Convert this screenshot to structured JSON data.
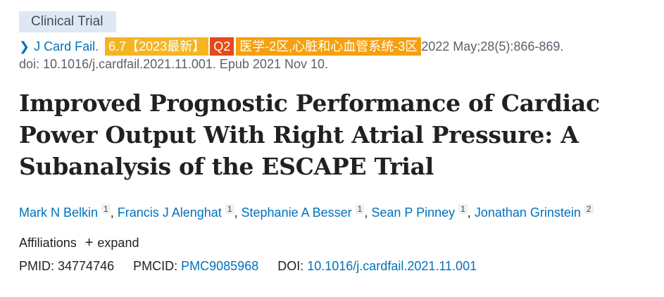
{
  "pub_type": "Clinical Trial",
  "citation": {
    "journal": "J Card Fail.",
    "impact_badge": "6.7【2023最新】",
    "quartile_badge": "Q2",
    "cas_badge": "医学-2区,心脏和心血管系统-3区",
    "date_volume": "2022 May;28(5):866-869.",
    "doi_epub": "doi: 10.1016/j.cardfail.2021.11.001. Epub 2021 Nov 10."
  },
  "title": "Improved Prognostic Performance of Cardiac Power Output With Right Atrial Pressure: A Subanalysis of the ESCAPE Trial",
  "authors": [
    {
      "name": "Mark N Belkin",
      "aff": "1"
    },
    {
      "name": "Francis J Alenghat",
      "aff": "1"
    },
    {
      "name": "Stephanie A Besser",
      "aff": "1"
    },
    {
      "name": "Sean P Pinney",
      "aff": "1"
    },
    {
      "name": "Jonathan Grinstein",
      "aff": "2"
    }
  ],
  "affiliations": {
    "label": "Affiliations",
    "expand": "expand"
  },
  "ids": {
    "pmid_label": "PMID:",
    "pmid": "34774746",
    "pmcid_label": "PMCID:",
    "pmcid": "PMC9085968",
    "doi_label": "DOI:",
    "doi": "10.1016/j.cardfail.2021.11.001"
  },
  "colors": {
    "link": "#0071bc",
    "badge_if": "#f5b521",
    "badge_q": "#e64a19",
    "badge_cas": "#f5a00f"
  },
  "icons": {
    "journal": "chevron-right-icon",
    "expand": "plus-icon"
  }
}
